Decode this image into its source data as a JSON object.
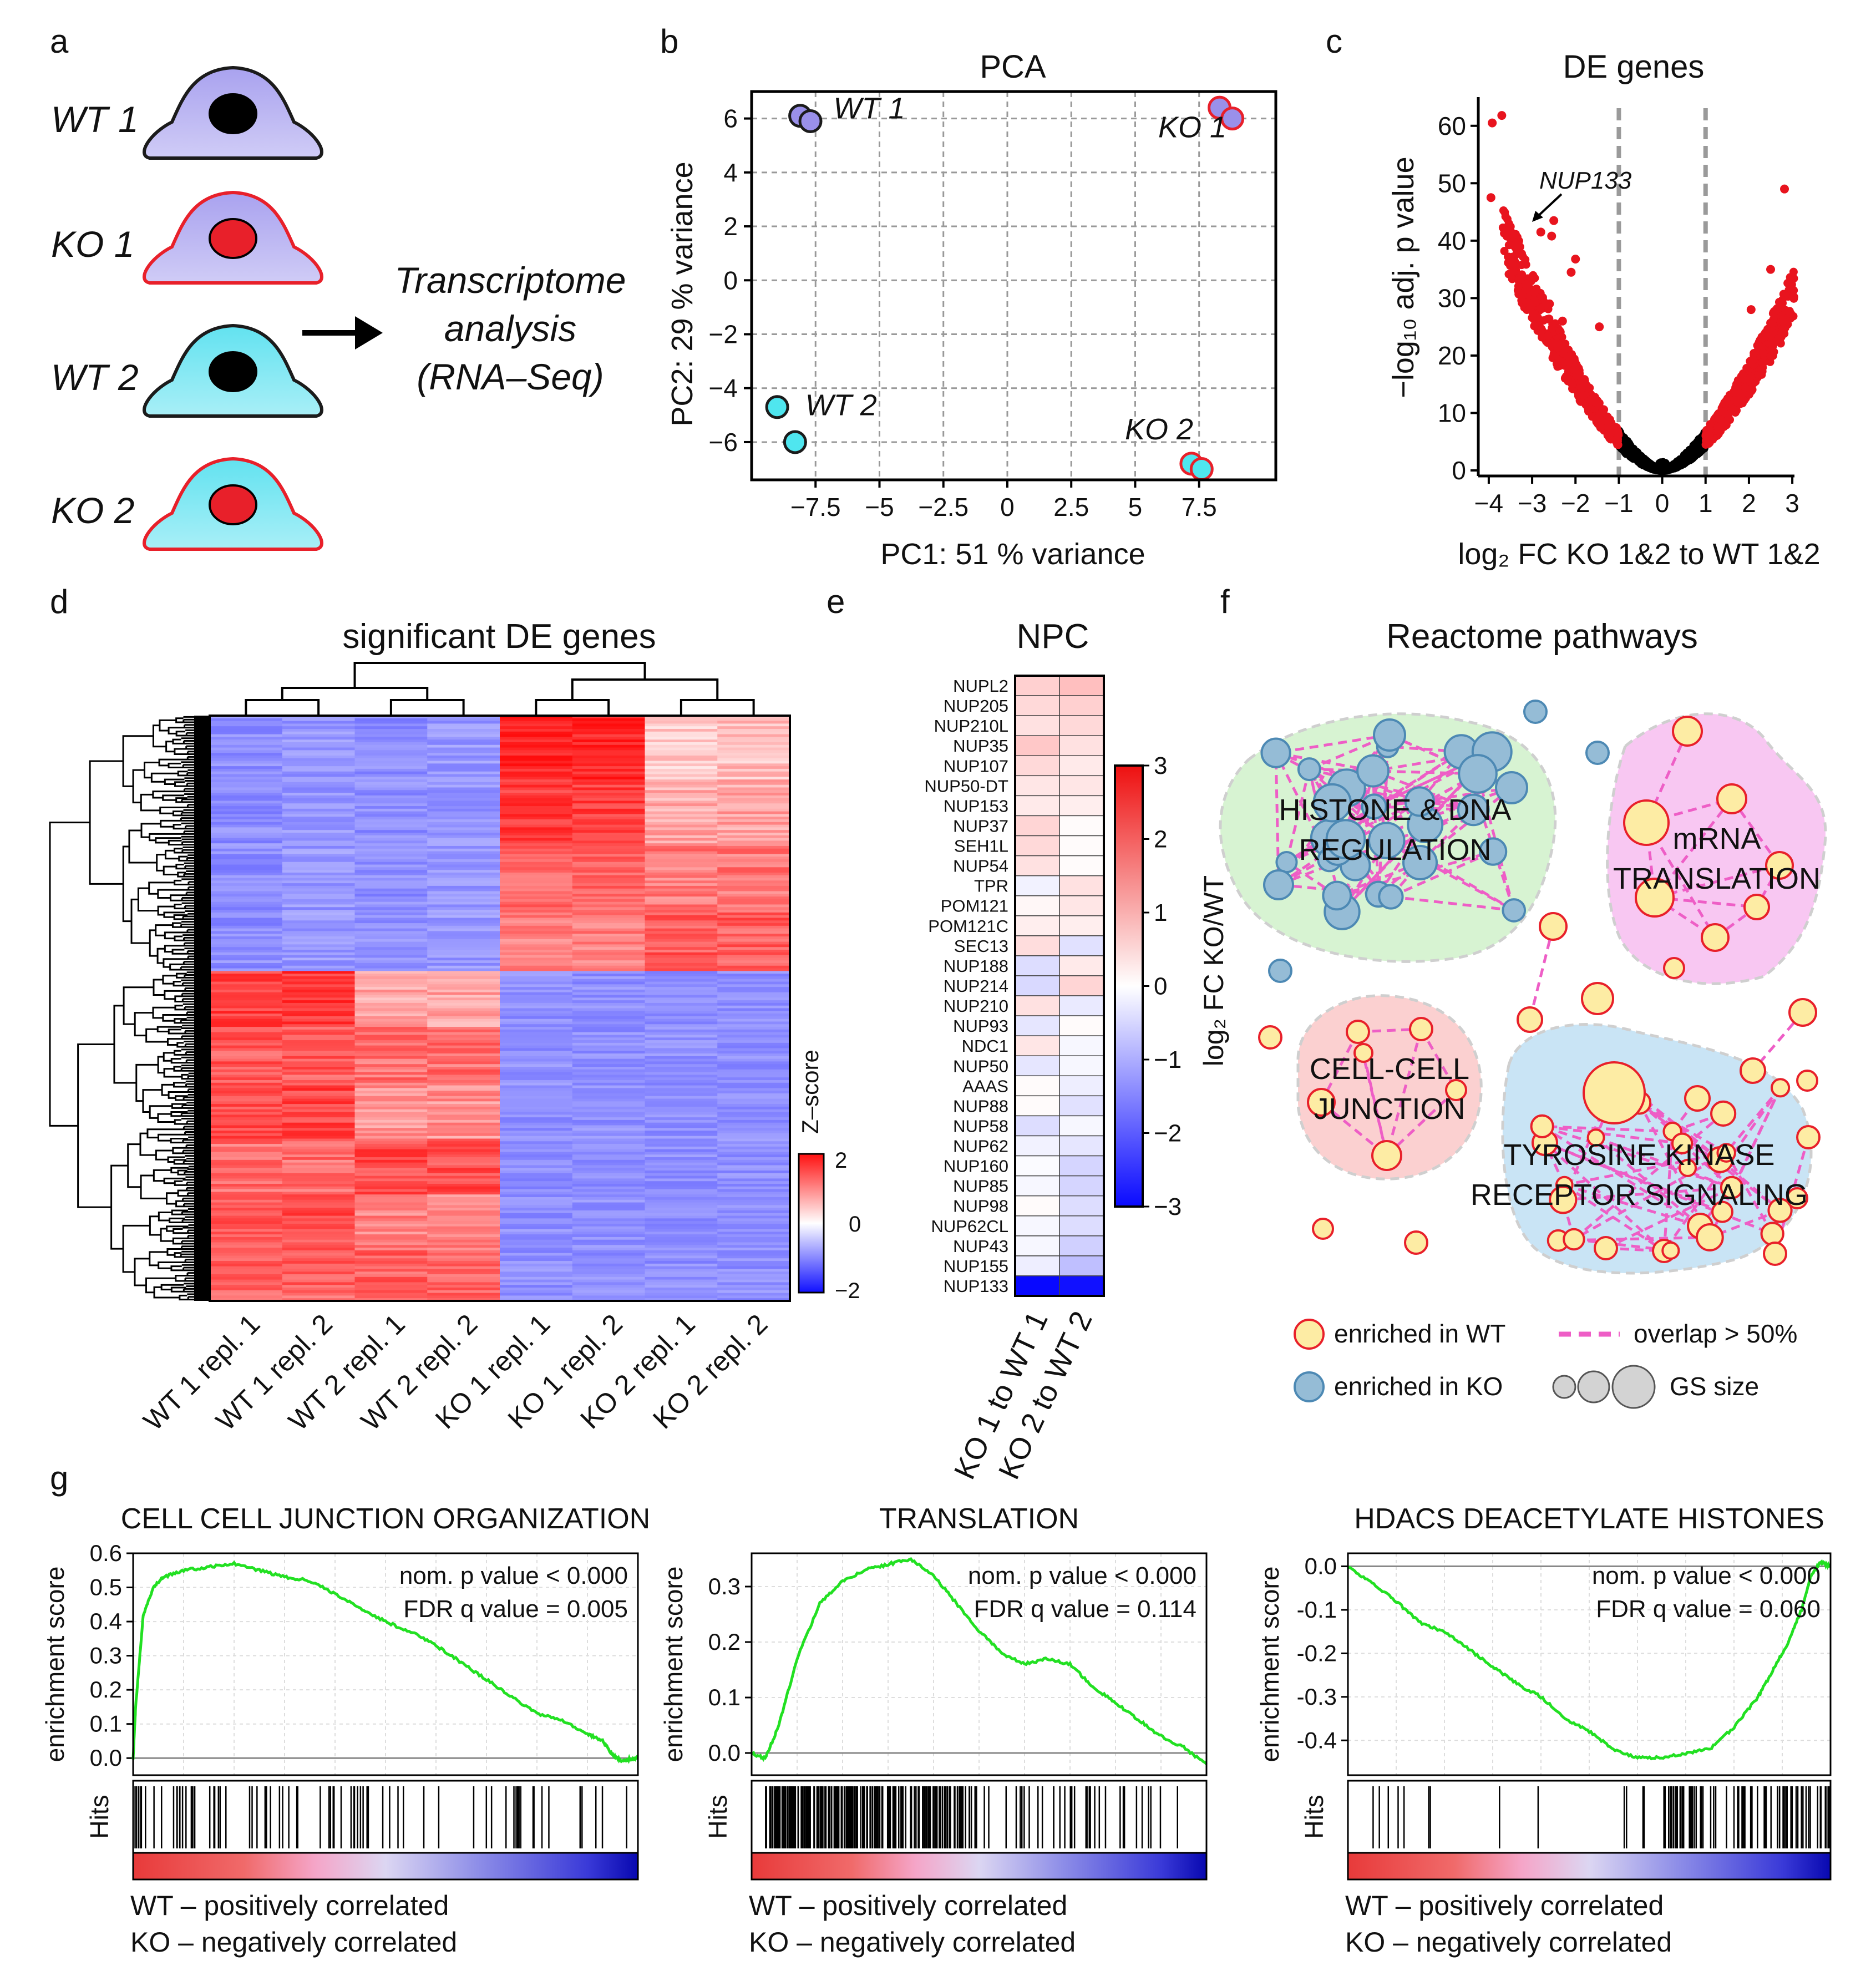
{
  "panel_letters": {
    "a": "a",
    "b": "b",
    "c": "c",
    "d": "d",
    "e": "e",
    "f": "f",
    "g": "g"
  },
  "panel_a": {
    "cells": [
      {
        "label": "WT 1",
        "body": "#a9a2ef",
        "nucleus": "#000000",
        "edge": "#1b1b1b"
      },
      {
        "label": "KO 1",
        "body": "#a9a2ef",
        "nucleus": "#e8202a",
        "edge": "#e8202a"
      },
      {
        "label": "WT 2",
        "body": "#62e2f0",
        "nucleus": "#000000",
        "edge": "#1b1b1b"
      },
      {
        "label": "KO 2",
        "body": "#62e2f0",
        "nucleus": "#e8202a",
        "edge": "#e8202a"
      }
    ],
    "arrow_text": [
      "Transcriptome",
      "analysis",
      "(RNA–Seq)"
    ]
  },
  "chart_data": [
    {
      "id": "pca",
      "type": "scatter",
      "title": "PCA",
      "xlabel": "PC1: 51 % variance",
      "ylabel": "PC2: 29 % variance",
      "xlim": [
        -10,
        10.5
      ],
      "ylim": [
        -7.4,
        7
      ],
      "xticks": [
        -7.5,
        -5,
        -2.5,
        0,
        2.5,
        5,
        7.5
      ],
      "xtick_labels": [
        "−7.5",
        "−5",
        "−2.5",
        "0",
        "2.5",
        "5",
        "7.5"
      ],
      "yticks": [
        -6,
        -4,
        -2,
        0,
        2,
        4,
        6
      ],
      "ytick_labels": [
        "−6",
        "−4",
        "−2",
        "0",
        "2",
        "4",
        "6"
      ],
      "grid": true,
      "points": [
        {
          "group": "WT 1",
          "x": -8.1,
          "y": 6.1,
          "fill": "#9a90ea",
          "edge": "#1b1b1b"
        },
        {
          "group": "WT 1",
          "x": -7.7,
          "y": 5.9,
          "fill": "#9a90ea",
          "edge": "#1b1b1b"
        },
        {
          "group": "KO 1",
          "x": 8.3,
          "y": 6.4,
          "fill": "#9a90ea",
          "edge": "#e8202a"
        },
        {
          "group": "KO 1",
          "x": 8.8,
          "y": 6.0,
          "fill": "#9a90ea",
          "edge": "#e8202a"
        },
        {
          "group": "WT 2",
          "x": -9.0,
          "y": -4.7,
          "fill": "#4fe6ef",
          "edge": "#1b1b1b"
        },
        {
          "group": "WT 2",
          "x": -8.3,
          "y": -6.0,
          "fill": "#4fe6ef",
          "edge": "#1b1b1b"
        },
        {
          "group": "KO 2",
          "x": 7.2,
          "y": -6.8,
          "fill": "#4fe6ef",
          "edge": "#e8202a"
        },
        {
          "group": "KO 2",
          "x": 7.6,
          "y": -7.0,
          "fill": "#4fe6ef",
          "edge": "#e8202a"
        }
      ],
      "point_labels": [
        {
          "text": "WT 1",
          "x": -6.8,
          "y": 6.0
        },
        {
          "text": "KO 1",
          "x": 5.9,
          "y": 5.3
        },
        {
          "text": "WT 2",
          "x": -7.9,
          "y": -5.0
        },
        {
          "text": "KO 2",
          "x": 4.6,
          "y": -5.9
        }
      ]
    },
    {
      "id": "volcano",
      "type": "scatter",
      "title": "DE genes",
      "xlabel": "log₂ FC KO 1&2 to WT 1&2",
      "ylabel": "−log₁₀ adj. p value",
      "xlim": [
        -4,
        3
      ],
      "ylim": [
        0,
        65
      ],
      "xticks": [
        -4,
        -3,
        -2,
        -1,
        0,
        1,
        2,
        3
      ],
      "xtick_labels": [
        "−4",
        "−3",
        "−2",
        "−1",
        "0",
        "1",
        "2",
        "3"
      ],
      "yticks": [
        0,
        10,
        20,
        30,
        40,
        50,
        60
      ],
      "ytick_labels": [
        "0",
        "10",
        "20",
        "30",
        "40",
        "50",
        "60"
      ],
      "thresholds": [
        -1,
        1
      ],
      "annotation": {
        "text": "NUP133",
        "x": -2.5,
        "y": 43.5
      },
      "colors": {
        "significant": "#e8141e",
        "ns": "#000000"
      },
      "highlight_points": [
        {
          "x": -3.92,
          "y": 60.5
        },
        {
          "x": -3.7,
          "y": 61.8
        },
        {
          "x": -3.95,
          "y": 47.5
        },
        {
          "x": -2.8,
          "y": 41.5
        },
        {
          "x": -2.5,
          "y": 43.5
        },
        {
          "x": -2.55,
          "y": 40.8
        },
        {
          "x": -2.1,
          "y": 34.5
        },
        {
          "x": -2.0,
          "y": 36.8
        },
        {
          "x": -1.45,
          "y": 25.0
        },
        {
          "x": 2.82,
          "y": 49.0
        },
        {
          "x": 2.5,
          "y": 35.0
        },
        {
          "x": 2.05,
          "y": 28.0
        },
        {
          "x": 2.7,
          "y": 23.0
        },
        {
          "x": 2.55,
          "y": 20.0
        },
        {
          "x": -2.6,
          "y": 29.0
        },
        {
          "x": -2.3,
          "y": 26.0
        }
      ]
    },
    {
      "id": "npc",
      "type": "heatmap",
      "title": "NPC",
      "rows": [
        "NUPL2",
        "NUP205",
        "NUP210L",
        "NUP35",
        "NUP107",
        "NUP50-DT",
        "NUP153",
        "NUP37",
        "SEH1L",
        "NUP54",
        "TPR",
        "POM121",
        "POM121C",
        "SEC13",
        "NUP188",
        "NUP214",
        "NUP210",
        "NUP93",
        "NDC1",
        "NUP50",
        "AAAS",
        "NUP88",
        "NUP58",
        "NUP62",
        "NUP160",
        "NUP85",
        "NUP98",
        "NUP62CL",
        "NUP43",
        "NUP155",
        "NUP133"
      ],
      "highlight_row": "NUP133",
      "columns": [
        "KO 1 to WT 1",
        "KO 2 to WT 2"
      ],
      "values": [
        [
          0.55,
          0.75
        ],
        [
          0.45,
          0.55
        ],
        [
          0.35,
          0.45
        ],
        [
          0.65,
          0.35
        ],
        [
          0.45,
          0.25
        ],
        [
          0.3,
          0.3
        ],
        [
          0.25,
          0.2
        ],
        [
          0.5,
          0.05
        ],
        [
          0.45,
          0.05
        ],
        [
          0.35,
          0.05
        ],
        [
          -0.15,
          0.35
        ],
        [
          0.1,
          0.3
        ],
        [
          0.2,
          0.2
        ],
        [
          0.4,
          -0.35
        ],
        [
          -0.4,
          0.25
        ],
        [
          -0.45,
          0.5
        ],
        [
          0.35,
          -0.25
        ],
        [
          -0.3,
          0.05
        ],
        [
          0.3,
          -0.1
        ],
        [
          -0.3,
          -0.1
        ],
        [
          0.05,
          -0.2
        ],
        [
          0.05,
          -0.35
        ],
        [
          -0.4,
          -0.1
        ],
        [
          -0.15,
          -0.3
        ],
        [
          -0.05,
          -0.5
        ],
        [
          -0.1,
          -0.5
        ],
        [
          0.05,
          -0.4
        ],
        [
          -0.1,
          -0.4
        ],
        [
          -0.1,
          -0.55
        ],
        [
          -0.2,
          -0.75
        ],
        [
          -2.9,
          -2.8
        ]
      ],
      "colorbar": {
        "label": "log₂ FC KO/WT",
        "min": -3,
        "max": 3,
        "ticks": [
          3,
          2,
          1,
          0,
          -1,
          -2,
          -3
        ],
        "tick_labels": [
          "3",
          "2",
          "1",
          "0",
          "−1",
          "−2",
          "−3"
        ]
      }
    },
    {
      "id": "gsea_junction",
      "type": "line",
      "title": "CELL CELL JUNCTION ORGANIZATION",
      "ylabel": "enrichment score",
      "xlabel": "",
      "hits_label": "Hits",
      "ylim": [
        -0.05,
        0.6
      ],
      "yticks": [
        0,
        0.1,
        0.2,
        0.3,
        0.4,
        0.5,
        0.6
      ],
      "ytick_labels": [
        "0.0",
        "0.1",
        "0.2",
        "0.3",
        "0.4",
        "0.5",
        "0.6"
      ],
      "stats": [
        "nom. p value < 0.000",
        "FDR q value = 0.005"
      ],
      "x": [
        0,
        0.005,
        0.02,
        0.04,
        0.06,
        0.1,
        0.15,
        0.2,
        0.25,
        0.3,
        0.35,
        0.4,
        0.45,
        0.5,
        0.55,
        0.6,
        0.65,
        0.7,
        0.75,
        0.8,
        0.85,
        0.9,
        0.93,
        0.95,
        0.97,
        0.99,
        1.0
      ],
      "values": [
        0.0,
        0.15,
        0.42,
        0.5,
        0.53,
        0.55,
        0.56,
        0.57,
        0.55,
        0.53,
        0.52,
        0.48,
        0.44,
        0.4,
        0.37,
        0.33,
        0.28,
        0.23,
        0.18,
        0.13,
        0.11,
        0.07,
        0.05,
        0.01,
        -0.01,
        0.0,
        0.0
      ],
      "hits_pattern": "junction"
    },
    {
      "id": "gsea_translation",
      "type": "line",
      "title": "TRANSLATION",
      "ylabel": "enrichment score",
      "xlabel": "",
      "hits_label": "Hits",
      "ylim": [
        -0.04,
        0.36
      ],
      "yticks": [
        0,
        0.1,
        0.2,
        0.3
      ],
      "ytick_labels": [
        "0.0",
        "0.1",
        "0.2",
        "0.3"
      ],
      "stats": [
        "nom. p value < 0.000",
        "FDR q value = 0.114"
      ],
      "x": [
        0,
        0.03,
        0.06,
        0.1,
        0.15,
        0.2,
        0.25,
        0.3,
        0.35,
        0.4,
        0.45,
        0.5,
        0.55,
        0.6,
        0.65,
        0.7,
        0.75,
        0.8,
        0.85,
        0.9,
        0.95,
        1.0
      ],
      "values": [
        0.0,
        -0.01,
        0.05,
        0.17,
        0.27,
        0.31,
        0.33,
        0.34,
        0.35,
        0.32,
        0.27,
        0.22,
        0.18,
        0.16,
        0.17,
        0.16,
        0.12,
        0.09,
        0.06,
        0.03,
        0.01,
        -0.02
      ],
      "hits_pattern": "translation"
    },
    {
      "id": "gsea_hdacs",
      "type": "line",
      "title": "HDACS DEACETYLATE HISTONES",
      "ylabel": "enrichment score",
      "xlabel": "",
      "hits_label": "Hits",
      "ylim": [
        -0.48,
        0.03
      ],
      "yticks": [
        0,
        -0.1,
        -0.2,
        -0.3,
        -0.4
      ],
      "ytick_labels": [
        "0.0",
        "-0.1",
        "-0.2",
        "-0.3",
        "-0.4"
      ],
      "stats": [
        "nom. p value < 0.000",
        "FDR q value = 0.060"
      ],
      "x": [
        0,
        0.05,
        0.1,
        0.15,
        0.2,
        0.25,
        0.3,
        0.35,
        0.4,
        0.45,
        0.5,
        0.55,
        0.6,
        0.65,
        0.7,
        0.75,
        0.8,
        0.85,
        0.88,
        0.91,
        0.94,
        0.96,
        0.98,
        1.0
      ],
      "values": [
        0.0,
        -0.04,
        -0.08,
        -0.13,
        -0.15,
        -0.19,
        -0.23,
        -0.27,
        -0.3,
        -0.35,
        -0.38,
        -0.42,
        -0.44,
        -0.44,
        -0.43,
        -0.42,
        -0.37,
        -0.3,
        -0.24,
        -0.18,
        -0.1,
        -0.02,
        0.01,
        0.0
      ],
      "hits_pattern": "hdacs"
    }
  ],
  "heatmap_d": {
    "title": "significant DE genes",
    "columns": [
      "WT 1 repl. 1",
      "WT 1 repl. 2",
      "WT 2 repl. 1",
      "WT 2 repl. 2",
      "KO 1 repl. 1",
      "KO 1 repl. 2",
      "KO 2 repl. 1",
      "KO 2 repl. 2"
    ],
    "colorbar": {
      "label": "Z–score",
      "ticks": [
        "2",
        "0",
        "−2"
      ]
    }
  },
  "network": {
    "title": "Reactome pathways",
    "clusters": [
      "HISTONE & DNA REGULATION",
      "mRNA TRANSLATION",
      "CELL-CELL JUNCTION",
      "TYROSINE KINASE RECEPTOR SIGNALING"
    ],
    "legend": {
      "wt": "enriched in WT",
      "ko": "enriched in KO",
      "overlap": "overlap > 50%",
      "size": "GS size"
    },
    "colors": {
      "wt_fill": "#fdeca4",
      "wt_edge": "#e8202a",
      "ko_fill": "#95bcd6",
      "ko_edge": "#4d89b4",
      "edge": "#ee5ec6"
    }
  },
  "gsea_legend": {
    "wt": "WT – positively correlated",
    "ko": "KO – negatively correlated",
    "wt_color": "#c8202a",
    "ko_color": "#1b75bb"
  }
}
